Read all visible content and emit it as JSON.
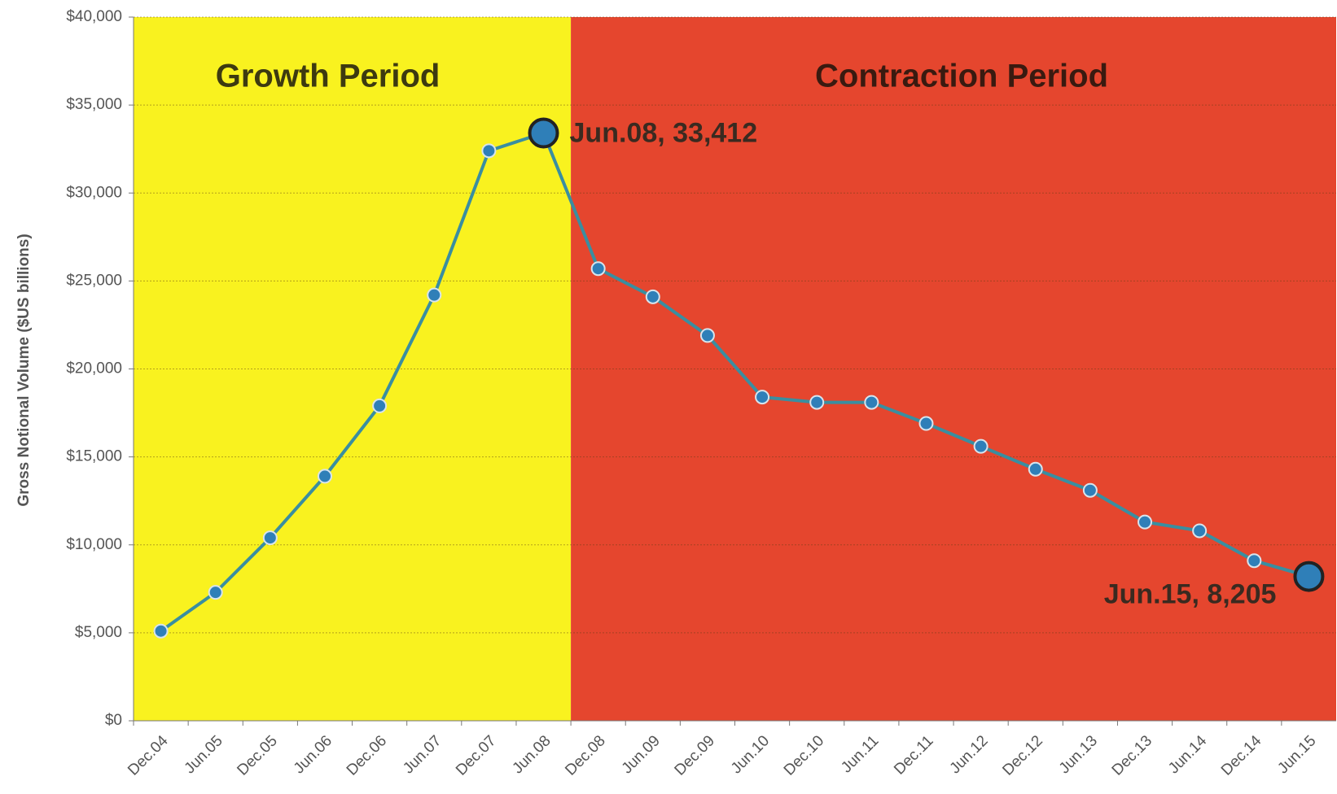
{
  "chart_data": {
    "type": "line",
    "y_label": "Gross Notional Volume ($US billions)",
    "categories": [
      "Dec.04",
      "Jun.05",
      "Dec.05",
      "Jun.06",
      "Dec.06",
      "Jun.07",
      "Dec.07",
      "Jun.08",
      "Dec.08",
      "Jun.09",
      "Dec.09",
      "Jun.10",
      "Dec.10",
      "Jun.11",
      "Dec.11",
      "Jun.12",
      "Dec.12",
      "Jun.13",
      "Dec.13",
      "Jun.14",
      "Dec.14",
      "Jun.15"
    ],
    "series": [
      {
        "color": "#2f7fb8",
        "line_color": "#3a8ea0",
        "values": [
          5100,
          7300,
          10400,
          13900,
          17900,
          24200,
          32400,
          33412,
          25700,
          24100,
          21900,
          18400,
          18100,
          18100,
          16900,
          15600,
          14300,
          13100,
          11300,
          10800,
          9100,
          8205
        ]
      }
    ],
    "ylim": [
      0,
      40000
    ],
    "yticks": [
      {
        "value": 0,
        "label": "$0"
      },
      {
        "value": 5000,
        "label": "$5,000"
      },
      {
        "value": 10000,
        "label": "$10,000"
      },
      {
        "value": 15000,
        "label": "$15,000"
      },
      {
        "value": 20000,
        "label": "$20,000"
      },
      {
        "value": 25000,
        "label": "$25,000"
      },
      {
        "value": 30000,
        "label": "$30,000"
      },
      {
        "value": 35000,
        "label": "$35,000"
      },
      {
        "value": 40000,
        "label": "$40,000"
      }
    ],
    "grid": true,
    "regions": [
      {
        "label": "Growth Period",
        "start": "Dec.04",
        "end": "Jun.08",
        "color": "#f9f21f",
        "text_color": "#3d3a10"
      },
      {
        "label": "Contraction Period",
        "start": "Dec.08",
        "end": "Jun.15",
        "color": "#e5462e",
        "text_color": "#3a1a10"
      }
    ],
    "annotations": [
      {
        "text": "Jun.08, 33,412",
        "category": "Jun.08",
        "side": "right"
      },
      {
        "text": "Jun.15, 8,205",
        "category": "Jun.15",
        "side": "below-left"
      }
    ]
  }
}
